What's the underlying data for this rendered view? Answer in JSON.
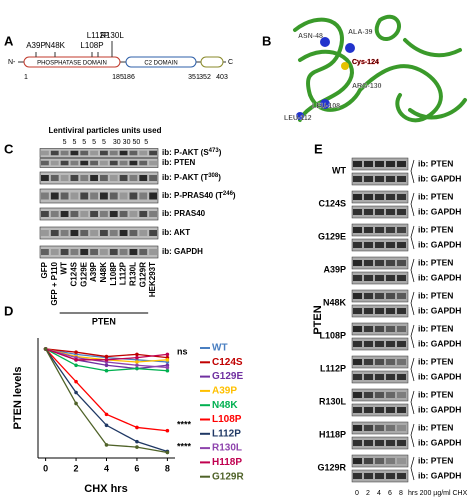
{
  "panel_a": {
    "letter": "A",
    "mutations": [
      "A39P",
      "N48K",
      "L108P",
      "L112P",
      "R130L"
    ],
    "n_term": "N-",
    "c_term": "C",
    "domains": [
      "PHOSPHATASE DOMAIN",
      "C2 DOMAIN"
    ],
    "positions": [
      1,
      185,
      186,
      351,
      352,
      403
    ]
  },
  "panel_b": {
    "letter": "B",
    "residues": [
      "ASN-48",
      "ALA-39",
      "Cys-124",
      "ARG-130",
      "LEU-108",
      "LEU-112"
    ]
  },
  "panel_c": {
    "letter": "C",
    "header": "Lentiviral particles units used",
    "units": [
      5,
      5,
      5,
      5,
      5,
      30,
      30,
      50,
      5
    ],
    "rows": [
      {
        "text": "ib: P-AKT (S",
        "sup": "473",
        "end": ")"
      },
      {
        "text": "ib: PTEN"
      },
      {
        "text": "ib: P-AKT (T",
        "sup": "308",
        "end": ")"
      },
      {
        "text": "ib: P-PRAS40 (T",
        "sup": "246",
        "end": ")"
      },
      {
        "text": "ib: PRAS40"
      },
      {
        "text": "ib: AKT"
      },
      {
        "text": "ib: GAPDH"
      }
    ],
    "lanes": [
      "GFP",
      "GFP + P110",
      "WT",
      "C124S",
      "G129E",
      "A39P",
      "N48K",
      "L108P",
      "L112P",
      "R130L",
      "G129R",
      "HEK293T"
    ],
    "group": "PTEN"
  },
  "chart_data": {
    "type": "line",
    "letter": "D",
    "x_label": "CHX hrs",
    "y_label": "PTEN levels",
    "xlim": [
      -0.5,
      8.5
    ],
    "xticks": [
      0,
      2,
      4,
      6,
      8
    ],
    "ylim": [
      0,
      1.1
    ],
    "x": [
      0,
      2,
      4,
      6,
      8
    ],
    "annotations": [
      "ns",
      "****",
      "****"
    ],
    "series": [
      {
        "name": "WT",
        "color": "#4a7fc1",
        "values": [
          1,
          0.95,
          0.92,
          0.9,
          0.88
        ]
      },
      {
        "name": "C124S",
        "color": "#c00000",
        "values": [
          1,
          0.97,
          0.93,
          0.95,
          0.92
        ]
      },
      {
        "name": "G129E",
        "color": "#7030a0",
        "values": [
          1,
          0.9,
          0.85,
          0.82,
          0.85
        ]
      },
      {
        "name": "A39P",
        "color": "#ffc000",
        "values": [
          1,
          0.93,
          0.9,
          0.88,
          0.9
        ]
      },
      {
        "name": "N48K",
        "color": "#00b050",
        "values": [
          1,
          0.85,
          0.8,
          0.82,
          0.8
        ]
      },
      {
        "name": "L108P",
        "color": "#ff0000",
        "values": [
          1,
          0.7,
          0.4,
          0.28,
          0.25
        ]
      },
      {
        "name": "L112P",
        "color": "#1f3864",
        "values": [
          1,
          0.6,
          0.3,
          0.15,
          0.06
        ]
      },
      {
        "name": "R130L",
        "color": "#8e44ad",
        "values": [
          1,
          0.92,
          0.88,
          0.85,
          0.83
        ]
      },
      {
        "name": "H118P",
        "color": "#c0004f",
        "values": [
          1,
          0.9,
          0.9,
          0.92,
          0.95
        ]
      },
      {
        "name": "G129R",
        "color": "#4f6228",
        "values": [
          1,
          0.5,
          0.12,
          0.1,
          0.05
        ]
      }
    ]
  },
  "panel_e": {
    "letter": "E",
    "group": "PTEN",
    "samples": [
      "WT",
      "C124S",
      "G129E",
      "A39P",
      "N48K",
      "L108P",
      "L112P",
      "R130L",
      "H118P",
      "G129R"
    ],
    "rows": [
      "ib: PTEN",
      "ib: GAPDH"
    ],
    "times": [
      0,
      2,
      4,
      6,
      8
    ],
    "unit": "hrs 200 µg/ml CHX"
  }
}
